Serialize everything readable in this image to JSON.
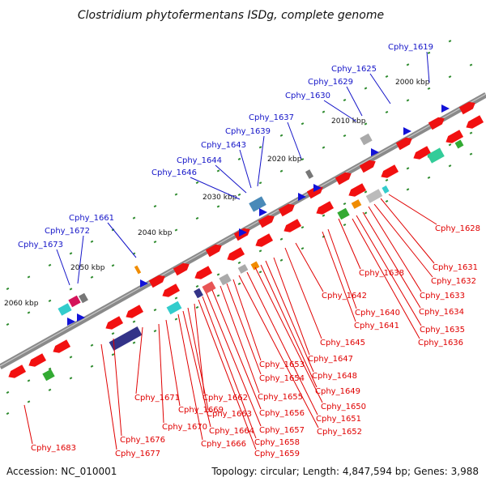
{
  "header": {
    "title": "Clostridium phytofermentans ISDg, complete genome"
  },
  "footer": {
    "accession": "Accession: NC_010001",
    "summary": "Topology: circular; Length: 4,847,594 bp; Genes: 3,988"
  },
  "colors": {
    "backbone": "#7a7a7a",
    "upper_labels": "#1414c8",
    "lower_labels": "#e00000",
    "tick": "#2e8b2e"
  },
  "kbp_ticks": [
    "2000 kbp",
    "2010 kbp",
    "2020 kbp",
    "2030 kbp",
    "2040 kbp",
    "2050 kbp",
    "2060 kbp"
  ],
  "upper_genes": [
    "Cphy_1619",
    "Cphy_1625",
    "Cphy_1629",
    "Cphy_1630",
    "Cphy_1637",
    "Cphy_1639",
    "Cphy_1643",
    "Cphy_1644",
    "Cphy_1646",
    "Cphy_1661",
    "Cphy_1672",
    "Cphy_1673"
  ],
  "lower_genes": [
    "Cphy_1628",
    "Cphy_1631",
    "Cphy_1632",
    "Cphy_1633",
    "Cphy_1634",
    "Cphy_1635",
    "Cphy_1636",
    "Cphy_1638",
    "Cphy_1640",
    "Cphy_1641",
    "Cphy_1642",
    "Cphy_1645",
    "Cphy_1647",
    "Cphy_1648",
    "Cphy_1649",
    "Cphy_1650",
    "Cphy_1651",
    "Cphy_1652",
    "Cphy_1653",
    "Cphy_1654",
    "Cphy_1655",
    "Cphy_1656",
    "Cphy_1657",
    "Cphy_1658",
    "Cphy_1659",
    "Cphy_1662",
    "Cphy_1663",
    "Cphy_1664",
    "Cphy_1666",
    "Cphy_1669",
    "Cphy_1670",
    "Cphy_1671",
    "Cphy_1676",
    "Cphy_1677",
    "Cphy_1683"
  ]
}
